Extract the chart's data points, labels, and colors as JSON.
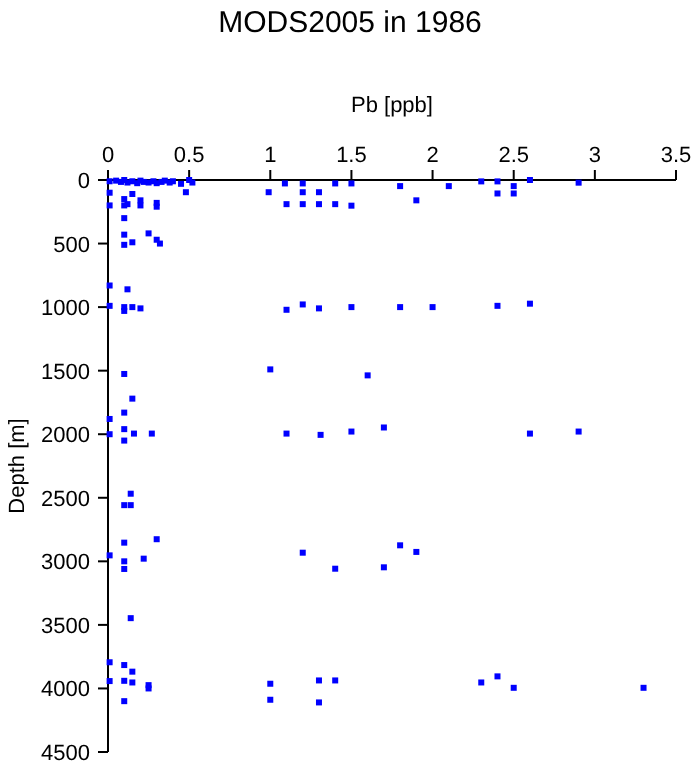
{
  "chart_data": {
    "type": "scatter",
    "title": "MODS2005 in 1986",
    "xlabel": "Pb [ppb]",
    "ylabel": "Depth [m]",
    "xlim": [
      0,
      3.5
    ],
    "ylim": [
      4500,
      0
    ],
    "xticks": [
      0,
      0.5,
      1,
      1.5,
      2,
      2.5,
      3,
      3.5
    ],
    "yticks": [
      0,
      500,
      1000,
      1500,
      2000,
      2500,
      3000,
      3500,
      4000,
      4500
    ],
    "marker": "square",
    "series": [
      {
        "color": "#0000ff",
        "x": [
          0.01,
          0.05,
          0.08,
          0.1,
          0.12,
          0.15,
          0.18,
          0.2,
          0.22,
          0.25,
          0.28,
          0.3,
          0.33,
          0.35,
          0.38,
          0.4,
          0.45,
          0.5,
          0.52,
          0.01,
          0.1,
          0.15,
          0.2,
          0.3,
          0.48,
          0.01,
          0.1,
          0.12,
          0.2,
          0.3,
          0.1,
          0.1,
          0.25,
          0.3,
          0.32,
          0.15,
          0.1,
          0.99,
          1.09,
          1.2,
          1.4,
          1.2,
          1.3,
          1.1,
          1.2,
          1.3,
          1.4,
          1.5,
          1.8,
          2.1,
          2.3,
          2.4,
          2.5,
          2.6,
          2.9,
          1.9,
          2.4,
          2.5,
          1.5,
          0.01,
          0.12,
          0.01,
          0.1,
          0.1,
          0.15,
          0.2,
          1.1,
          1.2,
          1.3,
          1.5,
          1.8,
          2.0,
          2.4,
          2.6,
          0.1,
          1.0,
          1.6,
          0.15,
          0.1,
          0.01,
          0.01,
          0.1,
          0.1,
          0.16,
          0.27,
          1.1,
          1.31,
          1.5,
          1.7,
          2.6,
          2.9,
          0.14,
          0.1,
          0.14,
          0.3,
          0.1,
          0.01,
          0.1,
          0.22,
          1.2,
          1.8,
          1.9,
          0.1,
          1.4,
          1.7,
          0.14,
          0.01,
          0.1,
          0.15,
          0.01,
          0.1,
          0.15,
          0.25,
          0.25,
          0.1,
          1.0,
          1.0,
          1.3,
          1.3,
          1.4,
          2.3,
          2.4,
          2.5,
          3.3
        ],
        "values": [
          10,
          5,
          15,
          0,
          20,
          10,
          25,
          5,
          15,
          20,
          10,
          25,
          15,
          5,
          20,
          10,
          30,
          0,
          20,
          100,
          150,
          110,
          160,
          180,
          96,
          200,
          200,
          190,
          200,
          210,
          300,
          430,
          420,
          470,
          500,
          490,
          510,
          96,
          27,
          27,
          27,
          96,
          96,
          190,
          190,
          190,
          190,
          27,
          48,
          48,
          11,
          11,
          48,
          0,
          21,
          160,
          106,
          106,
          202,
          830,
          860,
          990,
          1030,
          1000,
          1000,
          1010,
          1021,
          979,
          1010,
          1000,
          1000,
          1000,
          990,
          973,
          1526,
          1490,
          1537,
          1720,
          1830,
          1880,
          2000,
          1960,
          2050,
          1995,
          1995,
          1995,
          2005,
          1979,
          1947,
          1995,
          1979,
          2468,
          2558,
          2558,
          2826,
          2853,
          2953,
          3000,
          2979,
          2932,
          2874,
          2926,
          3060,
          3058,
          3047,
          3447,
          3794,
          3816,
          3868,
          3942,
          3940,
          3953,
          3974,
          4000,
          4100,
          3963,
          4089,
          3937,
          4110,
          3937,
          3953,
          3905,
          3995,
          3995
        ]
      }
    ]
  }
}
